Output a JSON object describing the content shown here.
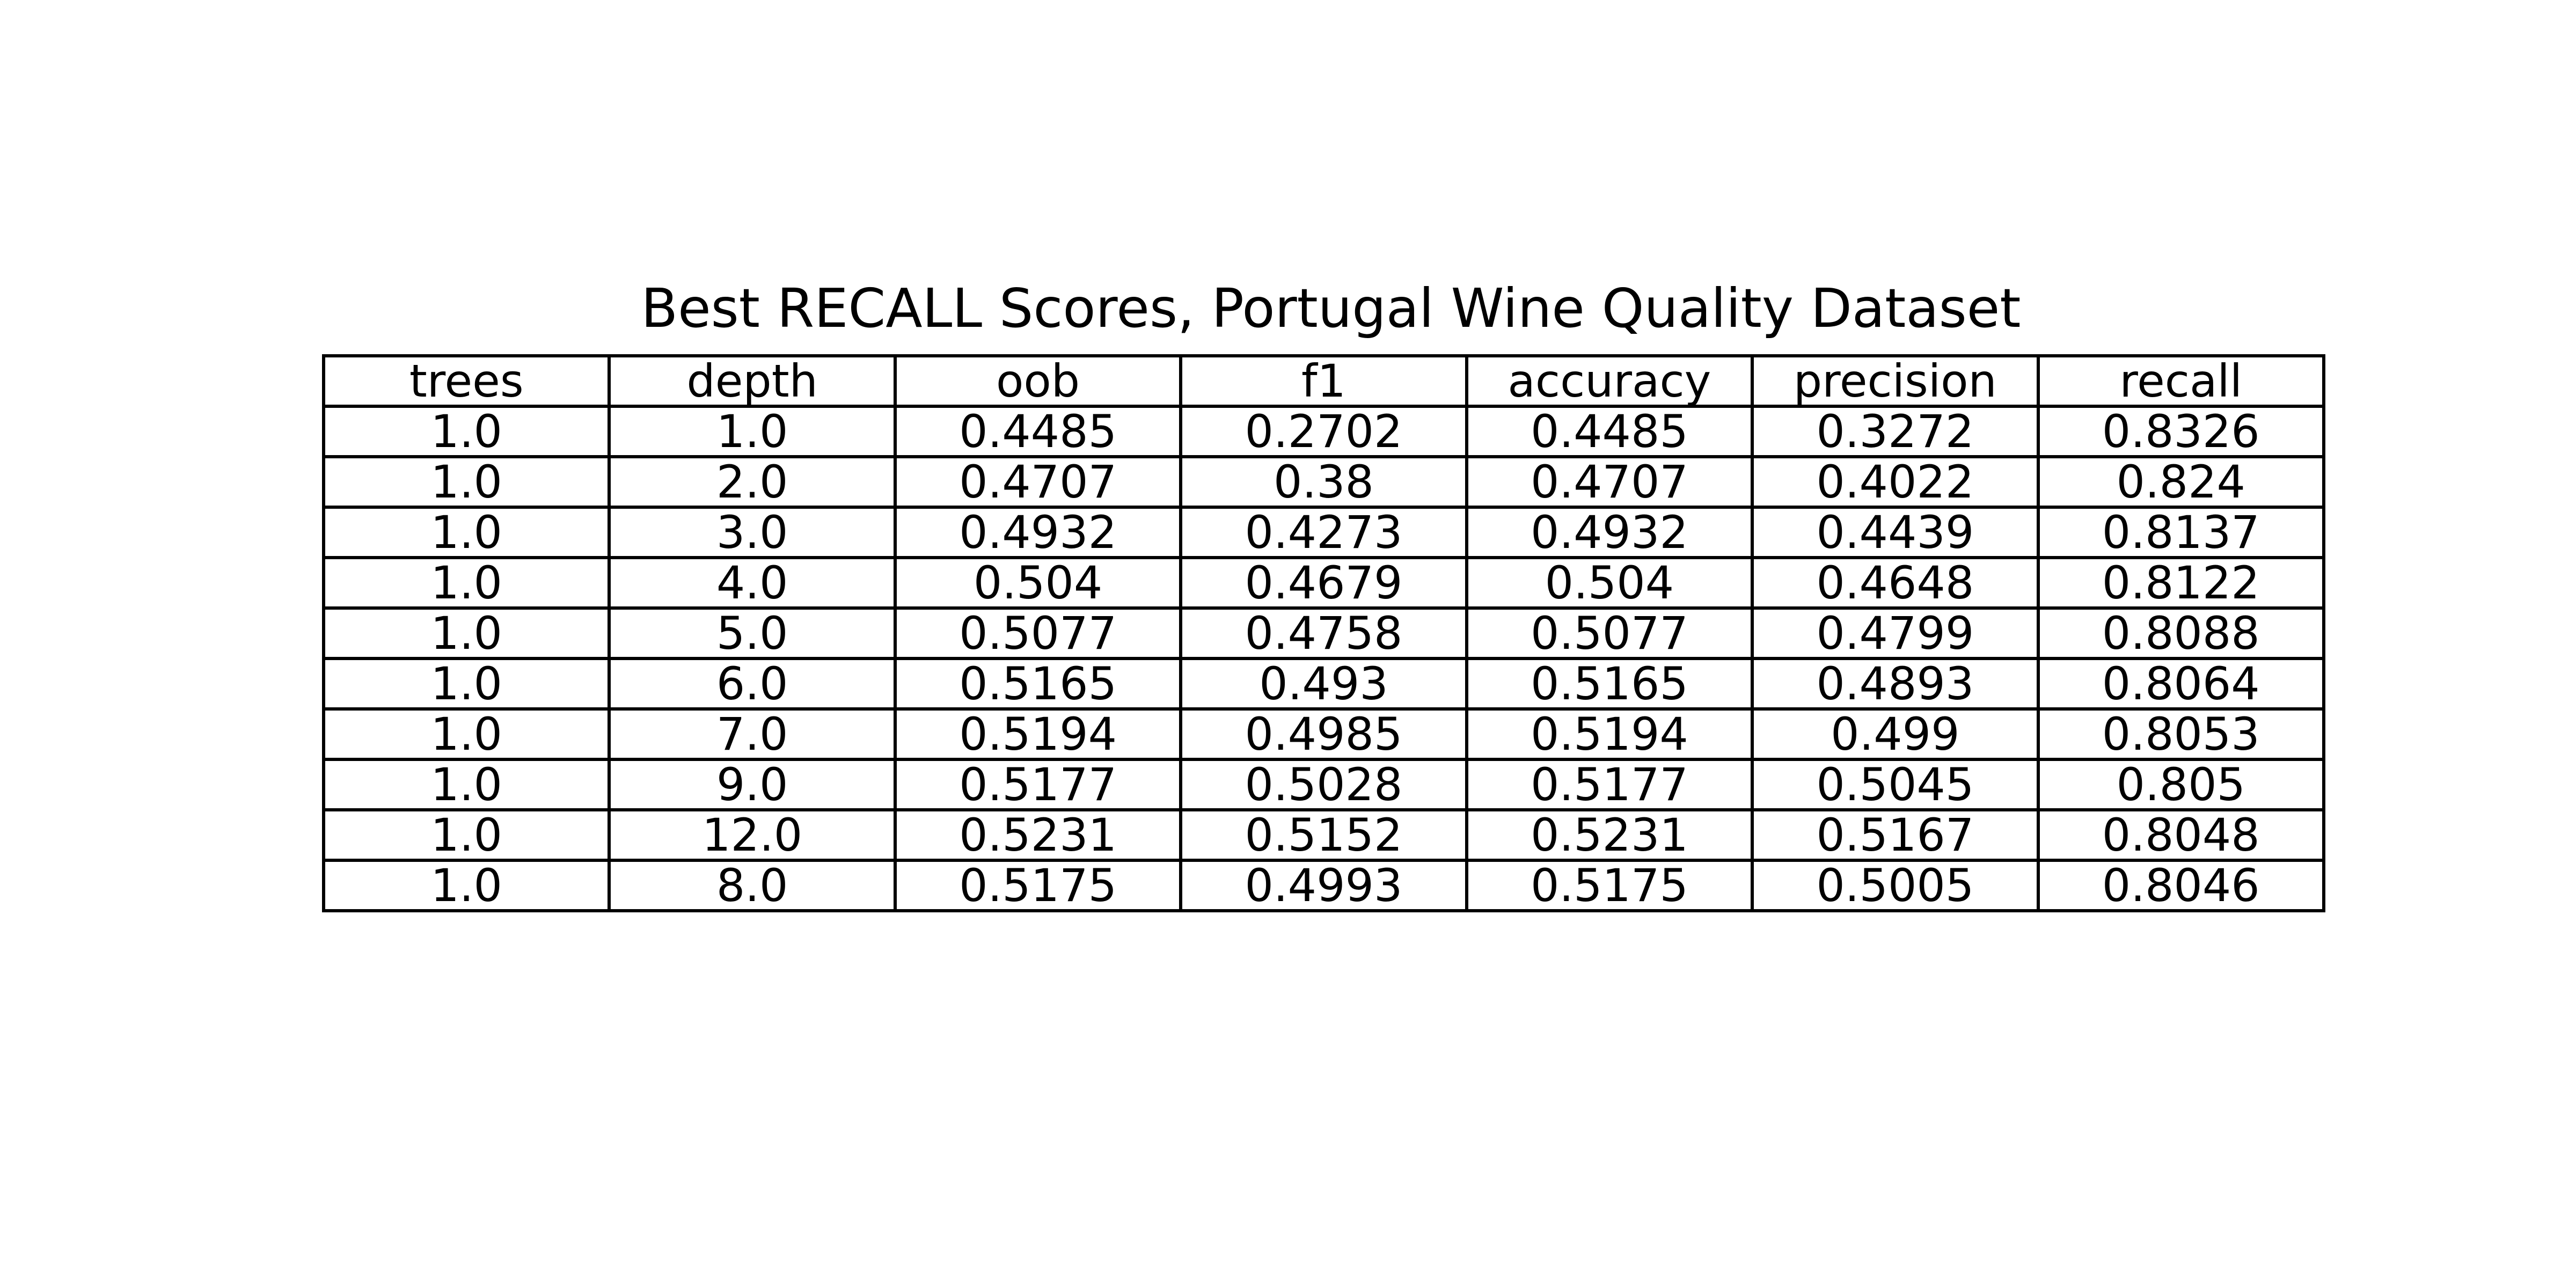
{
  "chart_data": {
    "type": "table",
    "title": "Best RECALL Scores, Portugal Wine Quality Dataset",
    "columns": [
      "trees",
      "depth",
      "oob",
      "f1",
      "accuracy",
      "precision",
      "recall"
    ],
    "rows": [
      [
        "1.0",
        "1.0",
        "0.4485",
        "0.2702",
        "0.4485",
        "0.3272",
        "0.8326"
      ],
      [
        "1.0",
        "2.0",
        "0.4707",
        "0.38",
        "0.4707",
        "0.4022",
        "0.824"
      ],
      [
        "1.0",
        "3.0",
        "0.4932",
        "0.4273",
        "0.4932",
        "0.4439",
        "0.8137"
      ],
      [
        "1.0",
        "4.0",
        "0.504",
        "0.4679",
        "0.504",
        "0.4648",
        "0.8122"
      ],
      [
        "1.0",
        "5.0",
        "0.5077",
        "0.4758",
        "0.5077",
        "0.4799",
        "0.8088"
      ],
      [
        "1.0",
        "6.0",
        "0.5165",
        "0.493",
        "0.5165",
        "0.4893",
        "0.8064"
      ],
      [
        "1.0",
        "7.0",
        "0.5194",
        "0.4985",
        "0.5194",
        "0.499",
        "0.8053"
      ],
      [
        "1.0",
        "9.0",
        "0.5177",
        "0.5028",
        "0.5177",
        "0.5045",
        "0.805"
      ],
      [
        "1.0",
        "12.0",
        "0.5231",
        "0.5152",
        "0.5231",
        "0.5167",
        "0.8048"
      ],
      [
        "1.0",
        "8.0",
        "0.5175",
        "0.4993",
        "0.5175",
        "0.5005",
        "0.8046"
      ]
    ]
  }
}
